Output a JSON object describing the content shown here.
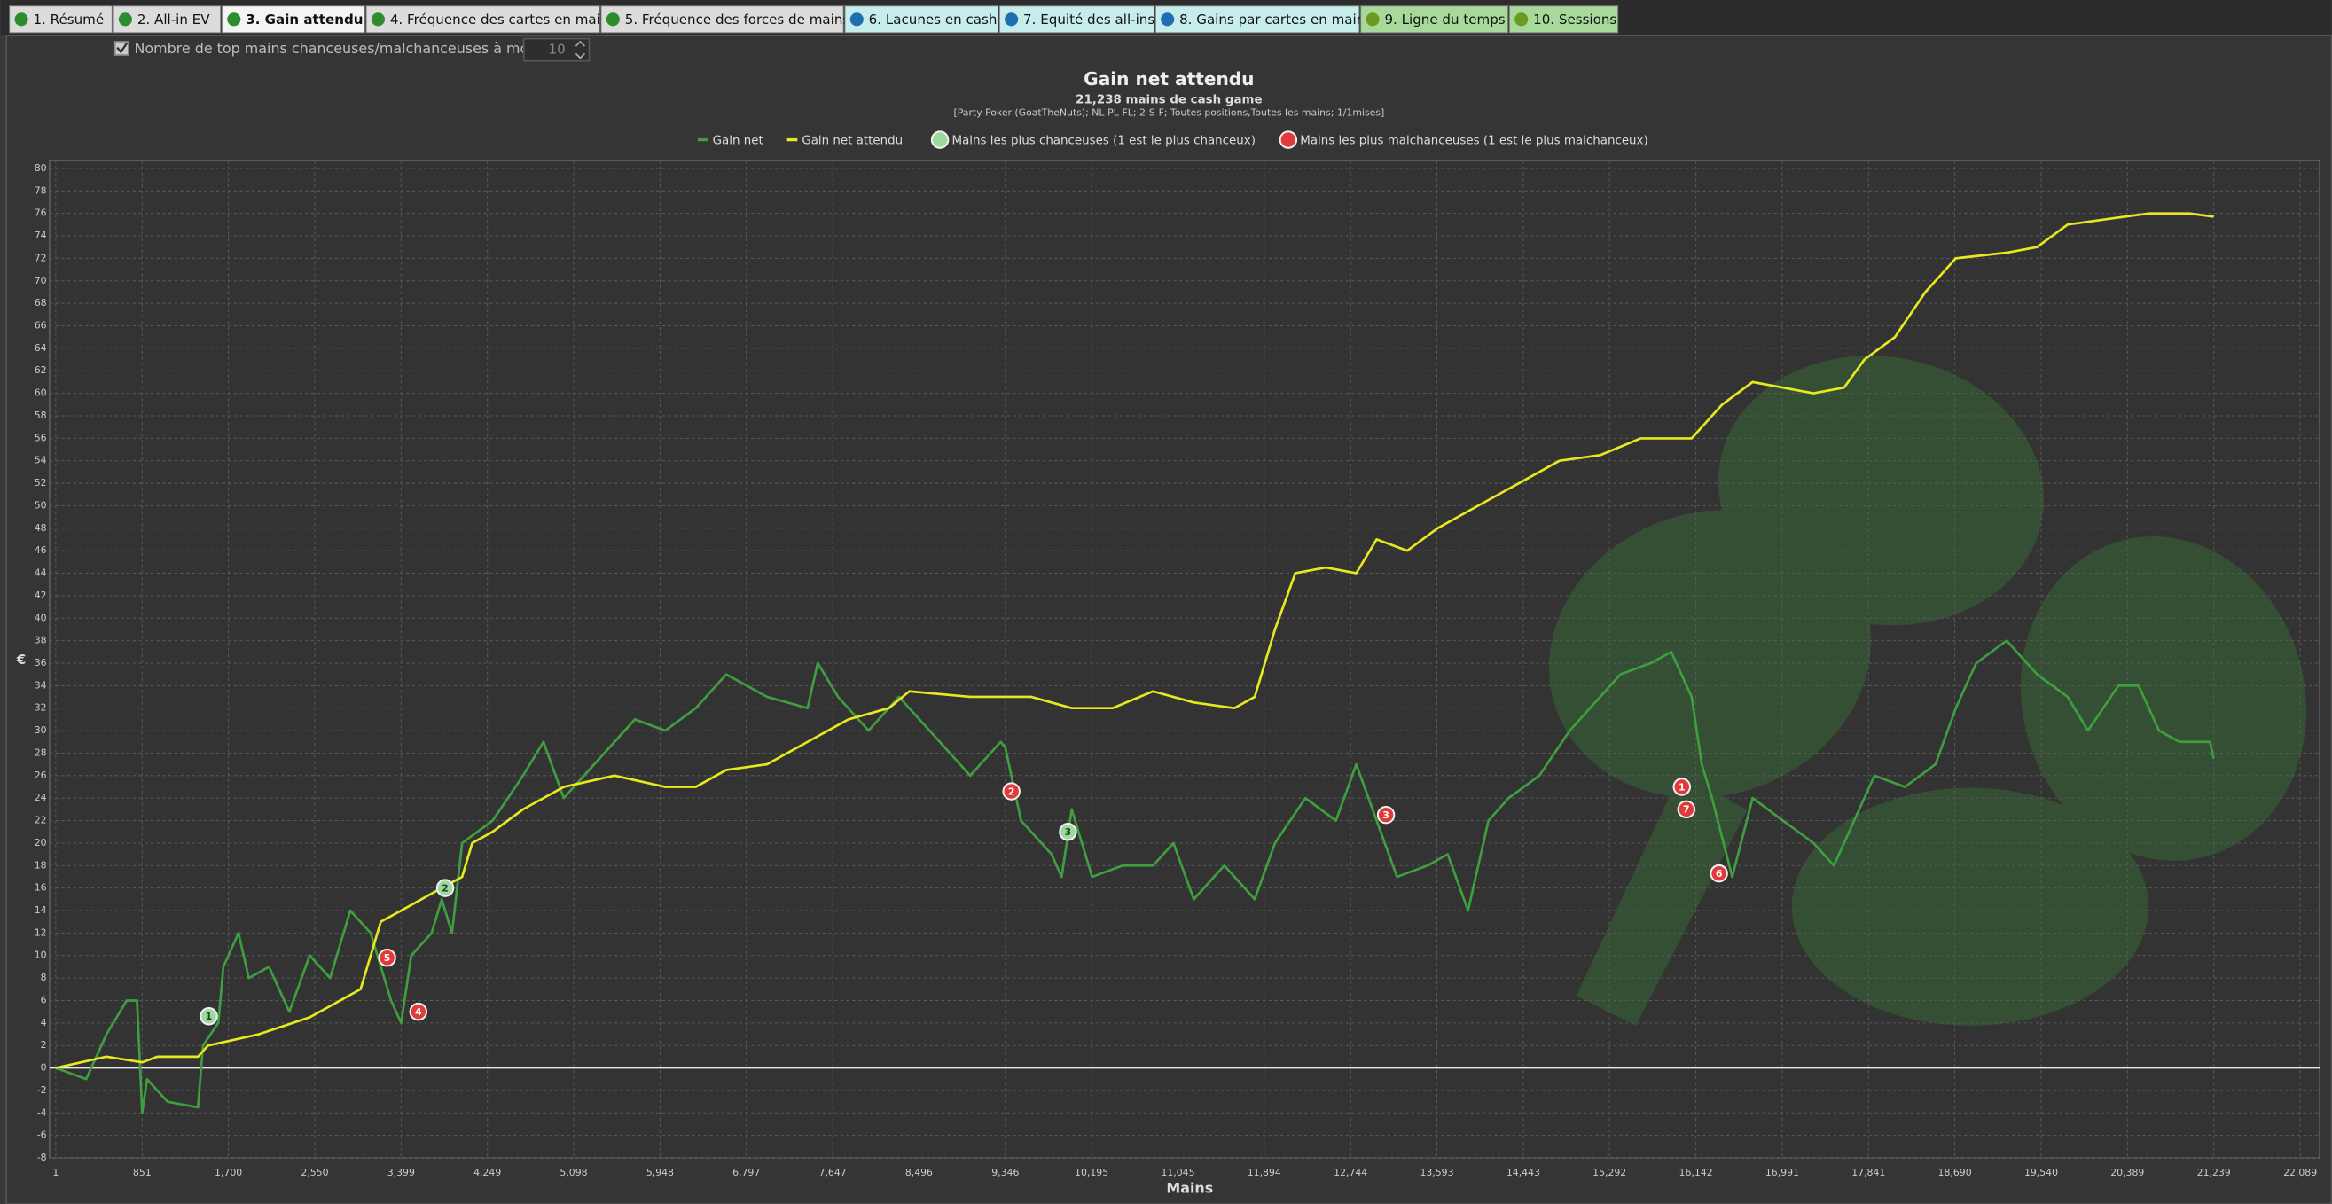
{
  "tabs": [
    "1. Résumé",
    "2. All-in EV",
    "3. Gain attendu",
    "4. Fréquence des cartes en main",
    "5. Fréquence des forces de mains",
    "6. Lacunes en cash",
    "7. Equité des all-ins",
    "8. Gains par cartes en main",
    "9. Ligne du temps",
    "10. Sessions"
  ],
  "controls": {
    "show_top_label": "Nombre de top mains chanceuses/malchanceuses à montrer:",
    "show_top_value": 10
  },
  "chart_data": {
    "type": "line",
    "title": "Gain net attendu",
    "subtitle": "21,238 mains de cash game",
    "filter": "[Party Poker (GoatTheNuts); NL-PL-FL; 2-S-F; Toutes positions,Toutes les mains; 1/1mises]",
    "x_label": "Mains",
    "y_label": "€",
    "xlim": [
      -60,
      22280
    ],
    "ylim": [
      -8,
      80.7
    ],
    "xticks": [
      1,
      851,
      {
        "value": 1700,
        "label": "1,700"
      },
      {
        "value": 2550,
        "label": "2,550"
      },
      {
        "value": 3399,
        "label": "3,399"
      },
      {
        "value": 4249,
        "label": "4,249"
      },
      {
        "value": 5098,
        "label": "5,098"
      },
      {
        "value": 5948,
        "label": "5,948"
      },
      {
        "value": 6797,
        "label": "6,797"
      },
      {
        "value": 7647,
        "label": "7,647"
      },
      {
        "value": 8496,
        "label": "8,496"
      },
      {
        "value": 9346,
        "label": "9,346"
      },
      {
        "value": 10195,
        "label": "10,195"
      },
      {
        "value": 11045,
        "label": "11,045"
      },
      {
        "value": 11894,
        "label": "11,894"
      },
      {
        "value": 12744,
        "label": "12,744"
      },
      {
        "value": 13593,
        "label": "13,593"
      },
      {
        "value": 14443,
        "label": "14,443"
      },
      {
        "value": 15292,
        "label": "15,292"
      },
      {
        "value": 16142,
        "label": "16,142"
      },
      {
        "value": 16991,
        "label": "16,991"
      },
      {
        "value": 17841,
        "label": "17,841"
      },
      {
        "value": 18690,
        "label": "18,690"
      },
      {
        "value": 19540,
        "label": "19,540"
      },
      {
        "value": 20389,
        "label": "20,389"
      },
      {
        "value": 21239,
        "label": "21,239"
      },
      {
        "value": 22089,
        "label": "22,089"
      }
    ],
    "yticks": [
      -8,
      -6,
      -4,
      -2,
      0,
      2,
      4,
      6,
      8,
      10,
      12,
      14,
      16,
      18,
      20,
      22,
      24,
      26,
      28,
      30,
      32,
      34,
      36,
      38,
      40,
      42,
      44,
      46,
      48,
      50,
      52,
      54,
      56,
      58,
      60,
      62,
      64,
      66,
      68,
      70,
      72,
      74,
      76,
      78,
      80
    ],
    "grid": true,
    "series": [
      {
        "name": "Gain net",
        "color": "#3f9e3f",
        "x": [
          1,
          300,
          500,
          700,
          800,
          851,
          900,
          1100,
          1400,
          1450,
          1600,
          1650,
          1800,
          1900,
          2100,
          2300,
          2500,
          2700,
          2900,
          3100,
          3300,
          3400,
          3500,
          3700,
          3800,
          3900,
          4000,
          4300,
          4600,
          4800,
          5000,
          5300,
          5700,
          6000,
          6300,
          6600,
          7000,
          7400,
          7500,
          7700,
          8000,
          8300,
          8700,
          9000,
          9300,
          9346,
          9500,
          9800,
          9900,
          10000,
          10200,
          10500,
          10800,
          11000,
          11200,
          11500,
          11800,
          12000,
          12300,
          12600,
          12800,
          13000,
          13200,
          13500,
          13700,
          13900,
          14100,
          14300,
          14600,
          14900,
          15200,
          15400,
          15700,
          15900,
          16100,
          16200,
          16300,
          16500,
          16700,
          17000,
          17300,
          17500,
          17700,
          17900,
          18200,
          18500,
          18700,
          18900,
          19200,
          19500,
          19800,
          20000,
          20300,
          20500,
          20700,
          20900,
          21200,
          21238
        ],
        "values": [
          0,
          -1,
          3,
          6,
          6,
          -4,
          -1,
          -3,
          -3.5,
          2,
          4,
          9,
          12,
          8,
          9,
          5,
          10,
          8,
          14,
          12,
          6,
          4,
          10,
          12,
          15,
          12,
          20,
          22,
          26,
          29,
          24,
          27,
          31,
          30,
          32,
          35,
          33,
          32,
          36,
          33,
          30,
          33,
          29,
          26,
          29,
          28.5,
          22,
          19,
          17,
          23,
          17,
          18,
          18,
          20,
          15,
          18,
          15,
          20,
          24,
          22,
          27,
          22,
          17,
          18,
          19,
          14,
          22,
          24,
          26,
          30,
          33,
          35,
          36,
          37,
          33,
          27,
          24,
          17,
          24,
          22,
          20,
          18,
          22,
          26,
          25,
          27,
          32,
          36,
          38,
          35,
          33,
          30,
          34,
          34,
          30,
          29,
          29,
          27.5
        ]
      },
      {
        "name": "Gain net attendu",
        "color": "#e8e820",
        "x": [
          1,
          500,
          851,
          1000,
          1400,
          1500,
          2000,
          2500,
          3000,
          3200,
          3400,
          3800,
          4000,
          4100,
          4300,
          4600,
          5000,
          5500,
          6000,
          6300,
          6600,
          7000,
          7400,
          7800,
          8200,
          8400,
          9000,
          9600,
          10000,
          10400,
          10800,
          11200,
          11600,
          11800,
          12000,
          12200,
          12500,
          12800,
          13000,
          13300,
          13600,
          14000,
          14400,
          14800,
          15200,
          15600,
          16100,
          16400,
          16700,
          17000,
          17300,
          17600,
          17800,
          18100,
          18400,
          18700,
          19200,
          19500,
          19800,
          20200,
          20600,
          21000,
          21239
        ],
        "values": [
          0,
          1,
          0.5,
          1,
          1,
          2,
          3,
          4.5,
          7,
          13,
          14,
          16,
          17,
          20,
          21,
          23,
          25,
          26,
          25,
          25,
          26.5,
          27,
          29,
          31,
          32,
          33.5,
          33,
          33,
          32,
          32,
          33.5,
          32.5,
          32,
          33,
          39,
          44,
          44.5,
          44,
          47,
          46,
          48,
          50,
          52,
          54,
          54.5,
          56,
          56,
          59,
          61,
          60.5,
          60,
          60.5,
          63,
          65,
          69,
          72,
          72.5,
          73,
          75,
          75.5,
          76,
          76,
          75.7
        ]
      }
    ],
    "markers": [
      {
        "name": "Mains les plus chanceuses (1 est le plus chanceux)",
        "color": "#9ed89e",
        "x": [
          1507,
          3833,
          9962
        ],
        "y": [
          4.6,
          16,
          21
        ],
        "labels": [
          "1",
          "2",
          "3"
        ]
      },
      {
        "name": "Mains les plus malchanceuses (1 est le plus malchanceux)",
        "color": "#e03a3a",
        "x": [
          16004,
          9406,
          13092,
          3569,
          3262,
          16369,
          16048
        ],
        "y": [
          25,
          24.6,
          22.5,
          5,
          9.8,
          17.3,
          23
        ],
        "labels": [
          "1",
          "2",
          "3",
          "4",
          "5",
          "6",
          "7"
        ]
      }
    ]
  }
}
